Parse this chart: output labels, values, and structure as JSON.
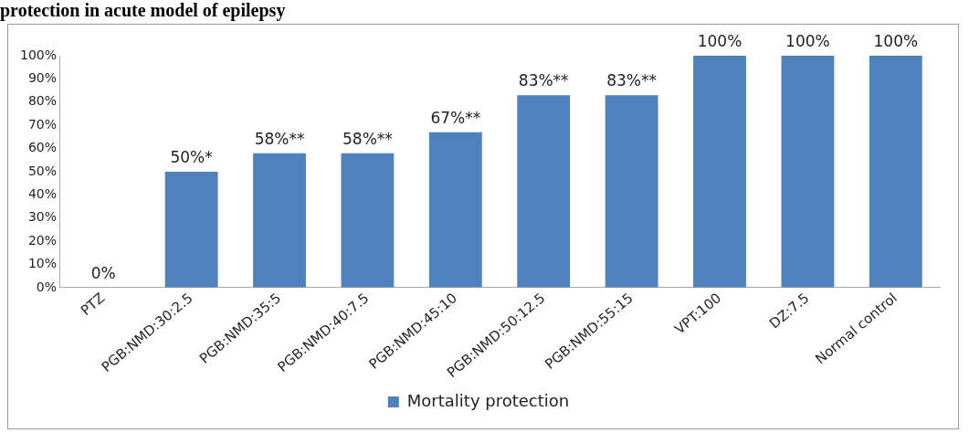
{
  "chart_data": {
    "type": "bar",
    "title": "protection in acute model of epilepsy",
    "categories": [
      "PTZ",
      "PGB:NMD:30:2.5",
      "PGB:NMD:35:5",
      "PGB:NMD:40:7.5",
      "PGB:NMD:45:10",
      "PGB:NMD:50:12.5",
      "PGB:NMD:55:15",
      "VPT:100",
      "DZ:7.5",
      "Normal control"
    ],
    "series": [
      {
        "name": "Mortality protection",
        "color": "#4f81bd",
        "values": [
          0,
          50,
          58,
          58,
          67,
          83,
          83,
          100,
          100,
          100
        ]
      }
    ],
    "value_labels": [
      "0%",
      "50%*",
      "58%**",
      "58%**",
      "67%**",
      "83%**",
      "83%**",
      "100%",
      "100%",
      "100%"
    ],
    "ylim": [
      0,
      100
    ],
    "yticks": [
      {
        "value": 0,
        "label": "0%"
      },
      {
        "value": 10,
        "label": "10%"
      },
      {
        "value": 20,
        "label": "20%"
      },
      {
        "value": 30,
        "label": "30%"
      },
      {
        "value": 40,
        "label": "40%"
      },
      {
        "value": 50,
        "label": "50%"
      },
      {
        "value": 60,
        "label": "60%"
      },
      {
        "value": 70,
        "label": "70%"
      },
      {
        "value": 80,
        "label": "80%"
      },
      {
        "value": 90,
        "label": "90%"
      },
      {
        "value": 100,
        "label": "100%"
      }
    ],
    "grid": false,
    "legend": "bottom"
  }
}
